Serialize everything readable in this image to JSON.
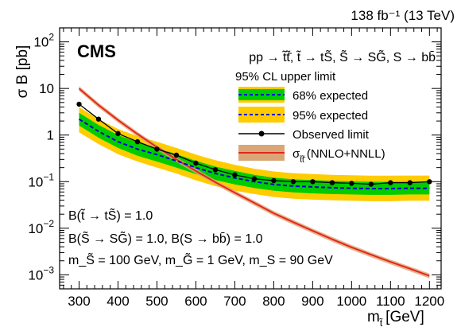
{
  "chart_data": {
    "type": "line",
    "header_right": "138 fb⁻¹ (13 TeV)",
    "brand": "CMS",
    "process": "pp → t̃t̃̄, t̃ → tS̃, S̃ → SG̃, S → bb̄",
    "ylabel": "σ B [pb]",
    "xlabel_main": "m",
    "xlabel_sub": "t̃",
    "xlabel_unit": "[GeV]",
    "xlim": [
      250,
      1230
    ],
    "ylim": [
      0.0005,
      200
    ],
    "yscale": "log",
    "x_ticks": [
      300,
      400,
      500,
      600,
      700,
      800,
      900,
      1000,
      1100,
      1200
    ],
    "y_ticks": [
      {
        "value": 100,
        "base": "10",
        "exp": "2"
      },
      {
        "value": 10,
        "base": "10",
        "exp": ""
      },
      {
        "value": 1,
        "base": "1",
        "exp": ""
      },
      {
        "value": 0.1,
        "base": "10",
        "exp": "−1"
      },
      {
        "value": 0.01,
        "base": "10",
        "exp": "−2"
      },
      {
        "value": 0.001,
        "base": "10",
        "exp": "−3"
      }
    ],
    "legend_title": "95% CL upper limit",
    "legend": {
      "exp68": "68% expected",
      "exp95": "95% expected",
      "observed": "Observed limit",
      "theory_sigma": "σ",
      "theory_sub": "t̃t̃̄",
      "theory_rest": "(NNLO+NNLL)"
    },
    "annotations": [
      "B(t̃ → tS̃) = 1.0",
      "B(S̃ → SG̃) = 1.0, B(S → bb̄) = 1.0",
      "m_S̃ = 100 GeV, m_G̃ = 1 GeV, m_S = 90 GeV"
    ],
    "colors": {
      "band95": "#ffcc00",
      "band68": "#00cc00",
      "expected": "#0000cc",
      "observed": "#000000",
      "theory": "#e8251a",
      "theory_band": "#d9a777"
    },
    "mass_points": [
      300,
      350,
      400,
      450,
      500,
      550,
      600,
      650,
      700,
      750,
      800,
      850,
      900,
      950,
      1000,
      1050,
      1100,
      1150,
      1200
    ],
    "observed": [
      4.6,
      2.2,
      1.08,
      0.72,
      0.5,
      0.37,
      0.25,
      0.18,
      0.14,
      0.115,
      0.105,
      0.1,
      0.1,
      0.095,
      0.092,
      0.088,
      0.095,
      0.095,
      0.1
    ],
    "expected": [
      2.2,
      1.2,
      0.72,
      0.5,
      0.38,
      0.28,
      0.2,
      0.15,
      0.12,
      0.1,
      0.087,
      0.08,
      0.077,
      0.074,
      0.072,
      0.071,
      0.071,
      0.072,
      0.072
    ],
    "expected_68_lo": [
      1.6,
      0.88,
      0.53,
      0.36,
      0.27,
      0.2,
      0.145,
      0.108,
      0.087,
      0.073,
      0.064,
      0.059,
      0.056,
      0.054,
      0.053,
      0.052,
      0.052,
      0.053,
      0.053
    ],
    "expected_68_hi": [
      3.0,
      1.65,
      1.0,
      0.7,
      0.53,
      0.39,
      0.28,
      0.21,
      0.17,
      0.14,
      0.122,
      0.112,
      0.108,
      0.104,
      0.101,
      0.099,
      0.099,
      0.1,
      0.1
    ],
    "expected_95_lo": [
      1.15,
      0.64,
      0.39,
      0.27,
      0.2,
      0.15,
      0.107,
      0.08,
      0.064,
      0.054,
      0.047,
      0.043,
      0.041,
      0.04,
      0.039,
      0.038,
      0.038,
      0.039,
      0.039
    ],
    "expected_95_hi": [
      4.0,
      2.2,
      1.35,
      0.95,
      0.72,
      0.53,
      0.38,
      0.29,
      0.23,
      0.19,
      0.165,
      0.152,
      0.146,
      0.14,
      0.137,
      0.134,
      0.134,
      0.135,
      0.135
    ],
    "theory_x": [
      300,
      350,
      400,
      450,
      500,
      550,
      600,
      650,
      700,
      750,
      800,
      850,
      900,
      950,
      1000,
      1050,
      1100,
      1150,
      1200
    ],
    "theory": [
      10.0,
      4.4,
      2.1,
      1.05,
      0.55,
      0.3,
      0.17,
      0.097,
      0.058,
      0.035,
      0.021,
      0.0135,
      0.0088,
      0.0058,
      0.0039,
      0.0027,
      0.0019,
      0.00135,
      0.00095
    ]
  }
}
